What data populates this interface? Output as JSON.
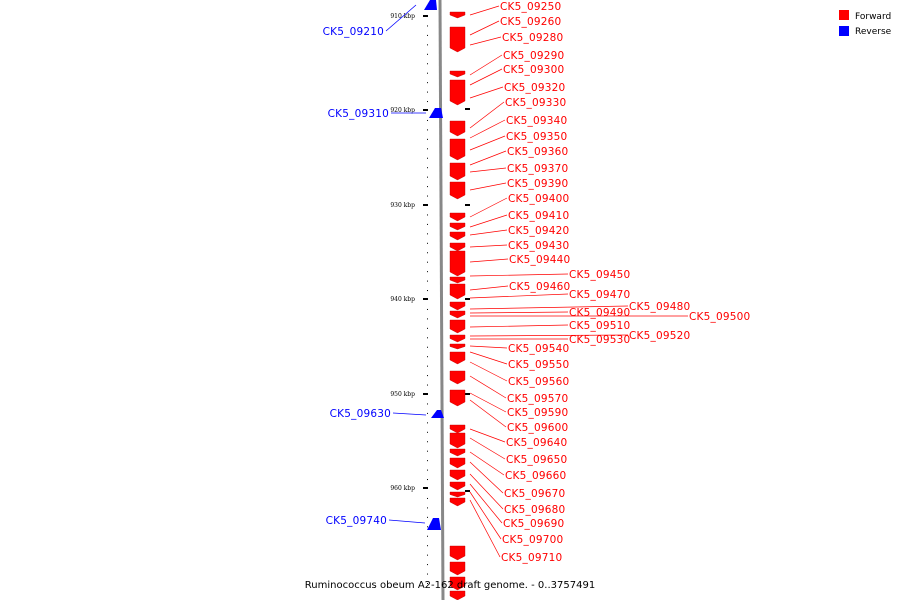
{
  "caption": "Ruminococcus obeum A2-162 draft genome. - 0..3757491",
  "legend": [
    {
      "label": "Forward",
      "color": "#ff0000"
    },
    {
      "label": "Reverse",
      "color": "#0000ff"
    }
  ],
  "ticks": [
    {
      "label": "910 kbp"
    },
    {
      "label": "920 kbp"
    },
    {
      "label": "930 kbp"
    },
    {
      "label": "940 kbp"
    },
    {
      "label": "950 kbp"
    },
    {
      "label": "960 kbp"
    }
  ],
  "reverse_genes": [
    {
      "label": "CK5_09210"
    },
    {
      "label": "CK5_09310"
    },
    {
      "label": "CK5_09630"
    },
    {
      "label": "CK5_09740"
    }
  ],
  "forward_genes": [
    {
      "label": "CK5_09250"
    },
    {
      "label": "CK5_09260"
    },
    {
      "label": "CK5_09280"
    },
    {
      "label": "CK5_09290"
    },
    {
      "label": "CK5_09300"
    },
    {
      "label": "CK5_09320"
    },
    {
      "label": "CK5_09330"
    },
    {
      "label": "CK5_09340"
    },
    {
      "label": "CK5_09350"
    },
    {
      "label": "CK5_09360"
    },
    {
      "label": "CK5_09370"
    },
    {
      "label": "CK5_09390"
    },
    {
      "label": "CK5_09400"
    },
    {
      "label": "CK5_09410"
    },
    {
      "label": "CK5_09420"
    },
    {
      "label": "CK5_09430"
    },
    {
      "label": "CK5_09440"
    },
    {
      "label": "CK5_09450"
    },
    {
      "label": "CK5_09460"
    },
    {
      "label": "CK5_09470"
    },
    {
      "label": "CK5_09480"
    },
    {
      "label": "CK5_09490"
    },
    {
      "label": "CK5_09500"
    },
    {
      "label": "CK5_09510"
    },
    {
      "label": "CK5_09520"
    },
    {
      "label": "CK5_09530"
    },
    {
      "label": "CK5_09540"
    },
    {
      "label": "CK5_09550"
    },
    {
      "label": "CK5_09560"
    },
    {
      "label": "CK5_09570"
    },
    {
      "label": "CK5_09590"
    },
    {
      "label": "CK5_09600"
    },
    {
      "label": "CK5_09640"
    },
    {
      "label": "CK5_09650"
    },
    {
      "label": "CK5_09660"
    },
    {
      "label": "CK5_09670"
    },
    {
      "label": "CK5_09680"
    },
    {
      "label": "CK5_09690"
    },
    {
      "label": "CK5_09700"
    },
    {
      "label": "CK5_09710"
    }
  ]
}
